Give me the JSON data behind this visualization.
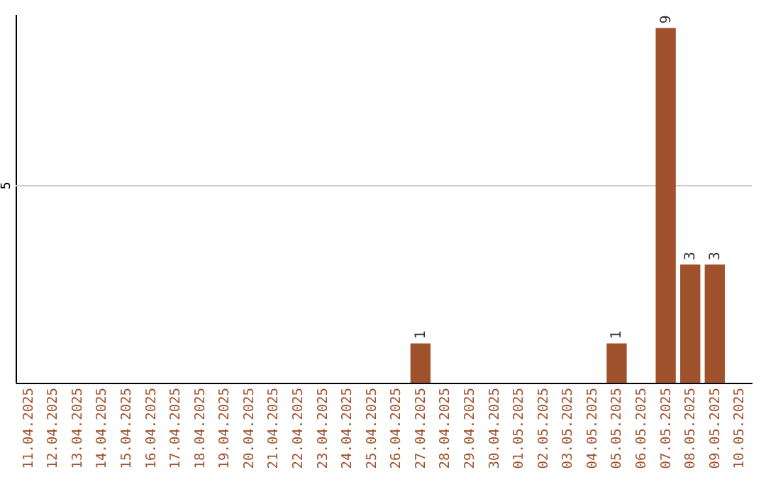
{
  "chart_data": {
    "type": "bar",
    "categories": [
      "11.04.2025",
      "12.04.2025",
      "13.04.2025",
      "14.04.2025",
      "15.04.2025",
      "16.04.2025",
      "17.04.2025",
      "18.04.2025",
      "19.04.2025",
      "20.04.2025",
      "21.04.2025",
      "22.04.2025",
      "23.04.2025",
      "24.04.2025",
      "25.04.2025",
      "26.04.2025",
      "27.04.2025",
      "28.04.2025",
      "29.04.2025",
      "30.04.2025",
      "01.05.2025",
      "02.05.2025",
      "03.05.2025",
      "04.05.2025",
      "05.05.2025",
      "06.05.2025",
      "07.05.2025",
      "08.05.2025",
      "09.05.2025",
      "10.05.2025"
    ],
    "values": [
      null,
      null,
      null,
      null,
      null,
      null,
      null,
      null,
      null,
      null,
      null,
      null,
      null,
      null,
      null,
      null,
      1,
      null,
      null,
      null,
      null,
      null,
      null,
      null,
      1,
      null,
      9,
      3,
      3,
      null
    ],
    "color": "#a0522d",
    "ylim": [
      0,
      9.35
    ],
    "data_labels": true,
    "ref_lines": [
      {
        "axis": "y",
        "value": 5,
        "label": "5",
        "color": "#cccccc"
      }
    ]
  }
}
